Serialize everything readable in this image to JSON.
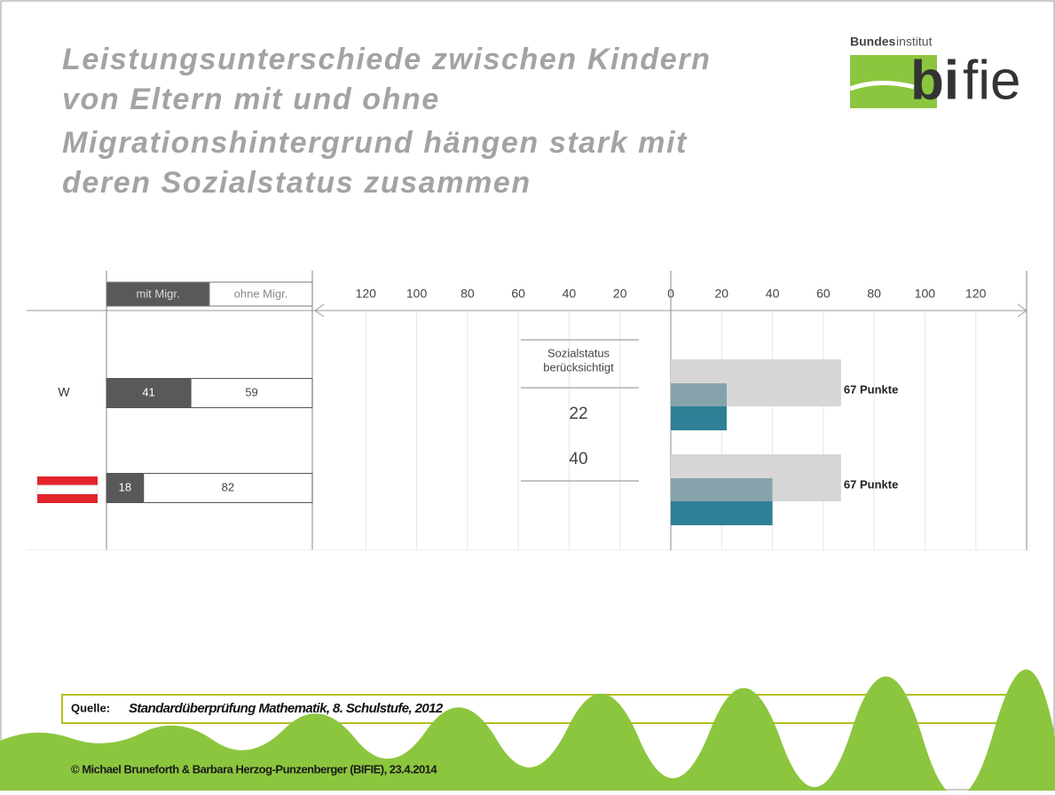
{
  "title": [
    "Leistungsunterschiede zwischen Kindern",
    "von Eltern mit und ohne",
    "Migrationshintergrund hängen stark mit",
    "deren Sozialstatus zusammen"
  ],
  "logo": {
    "top": [
      "Bundes",
      "institut"
    ],
    "brand": [
      "bi",
      "fie"
    ]
  },
  "chart_data": [
    {
      "type": "stacked-bar",
      "categories": [
        "W",
        null
      ],
      "series": [
        {
          "name": "mit Migr.",
          "color": "#58595b",
          "values": [
            41,
            18
          ]
        },
        {
          "name": "ohne Migr.",
          "color": "#ffffff",
          "values": [
            59,
            82
          ]
        }
      ],
      "xlim": [
        0,
        100
      ]
    },
    {
      "type": "bar",
      "annotation": [
        "Sozialstatus",
        "berücksichtigt"
      ],
      "series": [
        {
          "color": "#d6d6d6",
          "values": [
            67,
            67
          ],
          "value_labels": [
            "67 Punkte",
            "67 Punkte"
          ]
        },
        {
          "color": "#86a3ab",
          "values": [
            22,
            40
          ]
        },
        {
          "color": "#2f8097",
          "values": [
            22,
            40
          ]
        }
      ],
      "xlim": [
        -140,
        140
      ],
      "xticks": [
        {
          "value": -120,
          "label": "120"
        },
        {
          "value": -100,
          "label": "100"
        },
        {
          "value": -80,
          "label": "80"
        },
        {
          "value": -60,
          "label": "60"
        },
        {
          "value": -40,
          "label": "40"
        },
        {
          "value": -20,
          "label": "20"
        },
        0,
        20,
        40,
        60,
        80,
        100,
        120
      ],
      "grid": true
    }
  ],
  "source": {
    "label": "Quelle:",
    "text": "Standardüberprüfung Mathematik, 8. Schulstufe, 2012"
  },
  "footer": "© Michael Bruneforth & Barbara Herzog-Punzenberger (BIFIE), 23.4.2014"
}
